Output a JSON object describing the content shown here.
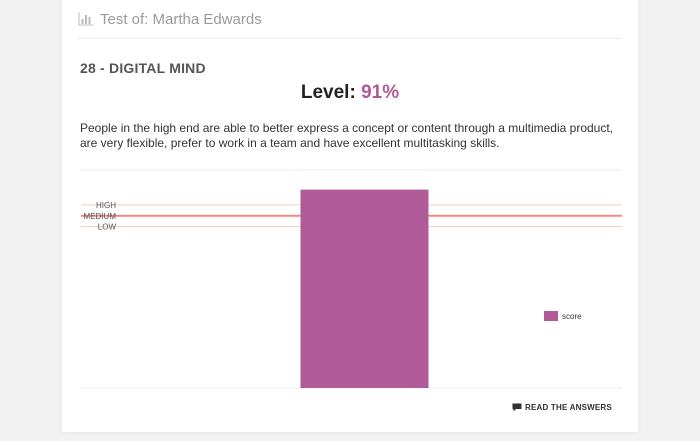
{
  "header": {
    "title": "Test of: Martha Edwards",
    "icon": "bar-chart-icon"
  },
  "section": {
    "title": "28 - DIGITAL MIND"
  },
  "level": {
    "label": "Level:",
    "value": "91%"
  },
  "description": "People in the high end are able to better express a concept or content through a multimedia product, are very flexible, prefer to work in a team and have excellent multitasking skills.",
  "footer": {
    "read_answers_label": "READ THE ANSWERS",
    "icon": "comment-icon"
  },
  "colors": {
    "bar": "#b05a97",
    "medium_line": "#f0897d",
    "band_line": "#f6c9c2",
    "grid": "#ececec",
    "level_accent": "#b05a97"
  },
  "chart_data": {
    "type": "bar",
    "categories": [
      ""
    ],
    "series": [
      {
        "name": "score",
        "values": [
          91
        ]
      }
    ],
    "ylim": [
      0,
      100
    ],
    "reference_lines": [
      {
        "label": "HIGH",
        "value": 84
      },
      {
        "label": "MEDIUM",
        "value": 79
      },
      {
        "label": "LOW",
        "value": 74
      }
    ],
    "legend": {
      "position": "right",
      "entries": [
        "score"
      ]
    },
    "grid": true
  }
}
